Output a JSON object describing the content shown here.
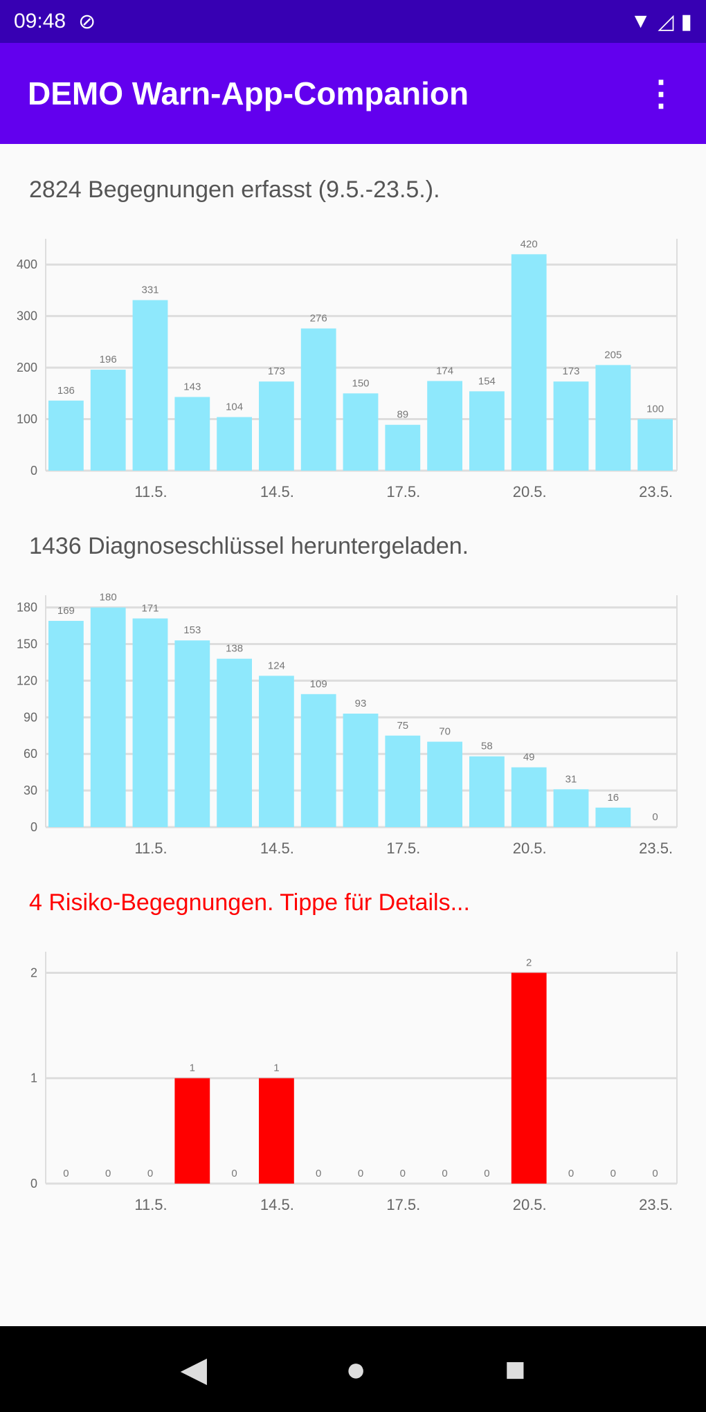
{
  "status_bar": {
    "time": "09:48",
    "icons": [
      "do-not-disturb-icon",
      "wifi-icon",
      "signal-icon",
      "battery-icon"
    ]
  },
  "app_bar": {
    "title": "DEMO Warn-App-Companion",
    "menu_icon": "more-vert-icon"
  },
  "sections": [
    {
      "heading": "2824 Begegnungen erfasst (9.5.-23.5.)."
    },
    {
      "heading": "1436 Diagnoseschlüssel heruntergeladen."
    },
    {
      "heading": "4 Risiko-Begegnungen. Tippe für Details..."
    }
  ],
  "chart_data": [
    {
      "type": "bar",
      "title": "Begegnungen",
      "categories": [
        "9.5.",
        "10.5.",
        "11.5.",
        "12.5.",
        "13.5.",
        "14.5.",
        "15.5.",
        "16.5.",
        "17.5.",
        "18.5.",
        "19.5.",
        "20.5.",
        "21.5.",
        "22.5.",
        "23.5."
      ],
      "values": [
        136,
        196,
        331,
        143,
        104,
        173,
        276,
        150,
        89,
        174,
        154,
        420,
        173,
        205,
        100
      ],
      "yticks": [
        0,
        100,
        200,
        300,
        400
      ],
      "ylim": [
        0,
        450
      ],
      "xticks": [
        "11.5.",
        "14.5.",
        "17.5.",
        "20.5.",
        "23.5."
      ],
      "color": "#8ee8fc"
    },
    {
      "type": "bar",
      "title": "Diagnoseschlüssel",
      "categories": [
        "9.5.",
        "10.5.",
        "11.5.",
        "12.5.",
        "13.5.",
        "14.5.",
        "15.5.",
        "16.5.",
        "17.5.",
        "18.5.",
        "19.5.",
        "20.5.",
        "21.5.",
        "22.5.",
        "23.5."
      ],
      "values": [
        169,
        180,
        171,
        153,
        138,
        124,
        109,
        93,
        75,
        70,
        58,
        49,
        31,
        16,
        0
      ],
      "yticks": [
        0,
        30,
        60,
        90,
        120,
        150,
        180
      ],
      "ylim": [
        0,
        190
      ],
      "xticks": [
        "11.5.",
        "14.5.",
        "17.5.",
        "20.5.",
        "23.5."
      ],
      "color": "#8ee8fc"
    },
    {
      "type": "bar",
      "title": "Risiko-Begegnungen",
      "categories": [
        "9.5.",
        "10.5.",
        "11.5.",
        "12.5.",
        "13.5.",
        "14.5.",
        "15.5.",
        "16.5.",
        "17.5.",
        "18.5.",
        "19.5.",
        "20.5.",
        "21.5.",
        "22.5.",
        "23.5."
      ],
      "values": [
        0,
        0,
        0,
        1,
        0,
        1,
        0,
        0,
        0,
        0,
        0,
        2,
        0,
        0,
        0
      ],
      "yticks": [
        0,
        1,
        2
      ],
      "ylim": [
        0,
        2.2
      ],
      "xticks": [
        "11.5.",
        "14.5.",
        "17.5.",
        "20.5.",
        "23.5."
      ],
      "color": "#ff0000"
    }
  ],
  "nav": {
    "back": "◀",
    "home": "●",
    "recents": "■"
  }
}
